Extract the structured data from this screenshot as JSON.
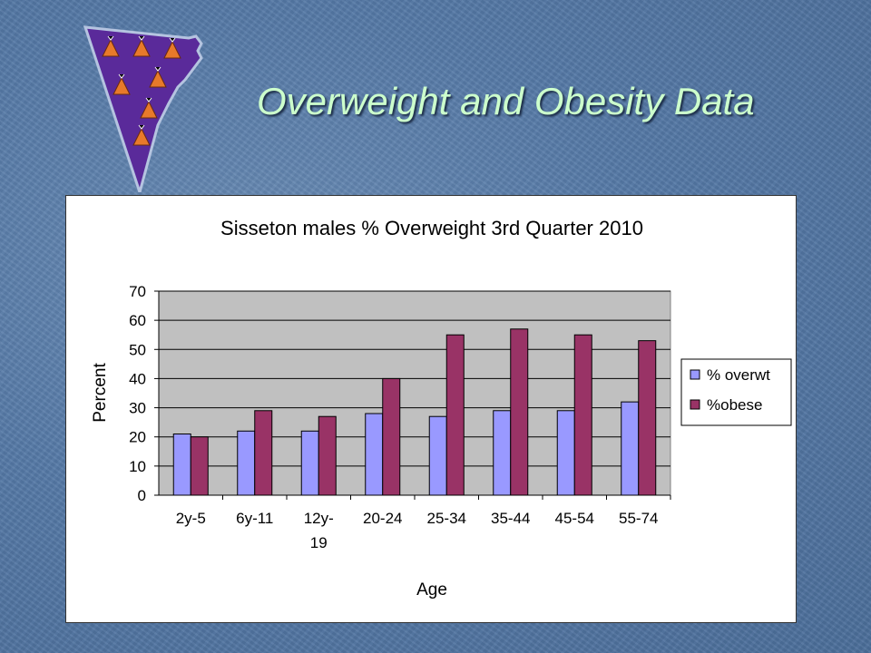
{
  "slide": {
    "title": "Overweight and Obesity Data"
  },
  "logo": {
    "icon": "teepee-flag-logo",
    "colors": {
      "fill": "#5a2a9a",
      "teepee": "#e87a2a"
    }
  },
  "chart_data": {
    "type": "bar",
    "title": "Sisseton males % Overweight 3rd Quarter 2010",
    "xlabel": "Age",
    "ylabel": "Percent",
    "ylim": [
      0,
      70
    ],
    "yticks": [
      0,
      10,
      20,
      30,
      40,
      50,
      60,
      70
    ],
    "categories": [
      "2y-5",
      "6y-11",
      "12y-19",
      "20-24",
      "25-34",
      "35-44",
      "45-54",
      "55-74"
    ],
    "category_lines": [
      [
        "2y-5"
      ],
      [
        "6y-11"
      ],
      [
        "12y-",
        "19"
      ],
      [
        "20-24"
      ],
      [
        "25-34"
      ],
      [
        "35-44"
      ],
      [
        "45-54"
      ],
      [
        "55-74"
      ]
    ],
    "series": [
      {
        "name": "% overwt",
        "color": "#9999ff",
        "values": [
          21,
          22,
          22,
          28,
          27,
          29,
          29,
          32
        ]
      },
      {
        "name": "%obese",
        "color": "#993366",
        "values": [
          20,
          29,
          27,
          40,
          55,
          57,
          55,
          53
        ]
      }
    ],
    "plot_background": "#c0c0c0",
    "grid": true,
    "legend": "right"
  }
}
